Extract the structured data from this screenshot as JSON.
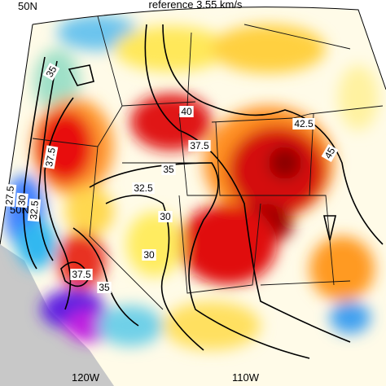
{
  "title": "reference 3.55 km/s",
  "lat_labels": [
    "50N",
    "50N"
  ],
  "lon_labels": [
    "120W",
    "110W"
  ],
  "contour_labels": [
    "35",
    "37.5",
    "40",
    "42.5",
    "45",
    "37.5",
    "35",
    "32.5",
    "27.5",
    "30",
    "32.5",
    "30",
    "30",
    "37.5",
    "35"
  ]
}
